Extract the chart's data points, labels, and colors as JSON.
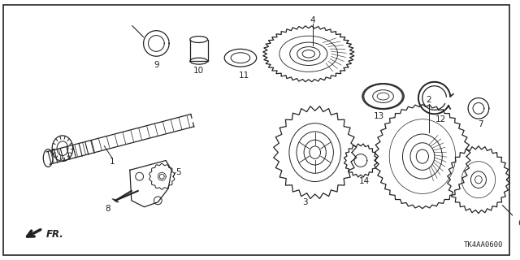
{
  "background_color": "#ffffff",
  "border_color": "#000000",
  "diagram_code": "TK4AA0600",
  "fr_label": "FR.",
  "line_color": "#222222",
  "figsize": [
    6.4,
    3.2
  ],
  "dpi": 100
}
